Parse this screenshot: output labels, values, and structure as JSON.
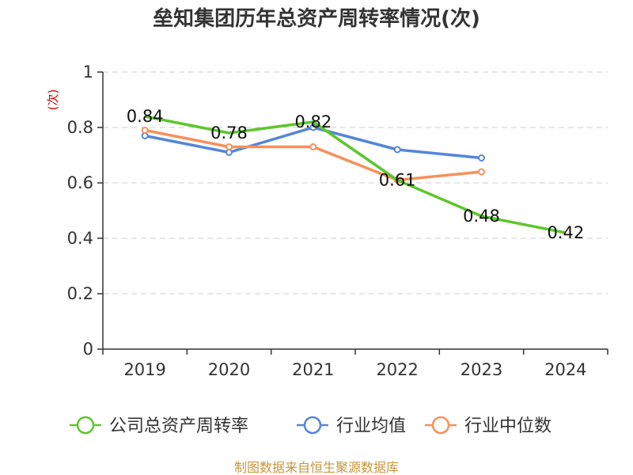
{
  "chart_data": {
    "type": "line",
    "title": "垒知集团历年总资产周转率情况(次)",
    "ylabel": "(次)",
    "xlabel": "",
    "categories": [
      "2019",
      "2020",
      "2021",
      "2022",
      "2023",
      "2024"
    ],
    "ylim": [
      0,
      1
    ],
    "yticks": [
      "0",
      "0.2",
      "0.4",
      "0.6",
      "0.8",
      "1"
    ],
    "grid": true,
    "legend_position": "bottom",
    "series": [
      {
        "name": "公司总资产周转率",
        "color": "#5cc72d",
        "values": [
          0.84,
          0.78,
          0.82,
          0.61,
          0.48,
          0.42
        ],
        "labels": [
          "0.84",
          "0.78",
          "0.82",
          "0.61",
          "0.48",
          "0.42"
        ]
      },
      {
        "name": "行业均值",
        "color": "#5586d8",
        "values": [
          0.77,
          0.71,
          0.8,
          0.72,
          0.69,
          null
        ]
      },
      {
        "name": "行业中位数",
        "color": "#f5915a",
        "values": [
          0.79,
          0.73,
          0.73,
          0.61,
          0.64,
          null
        ]
      }
    ],
    "source": "制图数据来自恒生聚源数据库"
  }
}
